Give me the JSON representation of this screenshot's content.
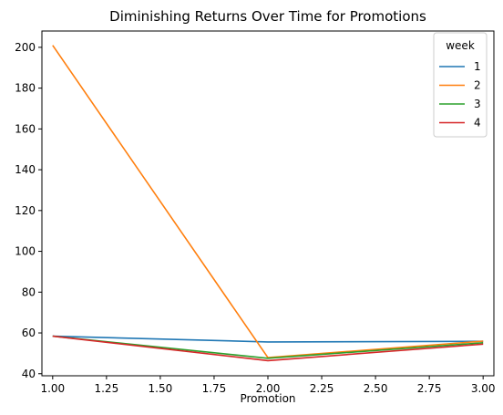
{
  "chart_data": {
    "type": "line",
    "title": "Diminishing Returns Over Time for Promotions",
    "xlabel": "Promotion",
    "ylabel": "",
    "x": [
      1,
      2,
      3
    ],
    "xlim": [
      0.95,
      3.05
    ],
    "ylim": [
      39,
      208
    ],
    "xticks": [
      1.0,
      1.25,
      1.5,
      1.75,
      2.0,
      2.25,
      2.5,
      2.75,
      3.0
    ],
    "xtick_labels": [
      "1.00",
      "1.25",
      "1.50",
      "1.75",
      "2.00",
      "2.25",
      "2.50",
      "2.75",
      "3.00"
    ],
    "yticks": [
      40,
      60,
      80,
      100,
      120,
      140,
      160,
      180,
      200
    ],
    "ytick_labels": [
      "40",
      "60",
      "80",
      "100",
      "120",
      "140",
      "160",
      "180",
      "200"
    ],
    "grid": false,
    "legend": {
      "title": "week",
      "placement": "top-right"
    },
    "series": [
      {
        "name": "1",
        "color": "#1f77b4",
        "values": [
          58.4,
          55.6,
          55.9
        ]
      },
      {
        "name": "2",
        "color": "#ff7f0e",
        "values": [
          201.0,
          47.9,
          56.0
        ]
      },
      {
        "name": "3",
        "color": "#2ca02c",
        "values": [
          58.4,
          47.6,
          55.2
        ]
      },
      {
        "name": "4",
        "color": "#d62728",
        "values": [
          58.4,
          46.4,
          54.5
        ]
      }
    ]
  }
}
